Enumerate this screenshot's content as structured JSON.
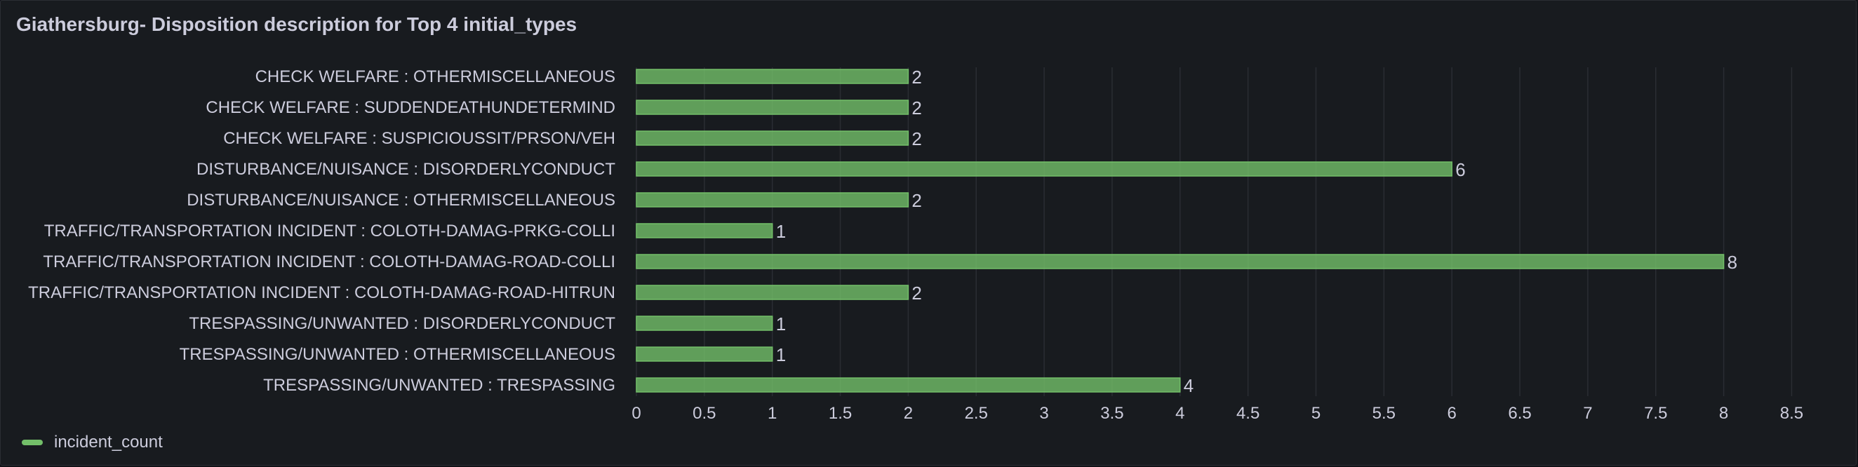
{
  "panel": {
    "title": "Giathersburg- Disposition description for Top 4 initial_types"
  },
  "legend": {
    "label": "incident_count",
    "color": "#73bf69"
  },
  "chart_data": {
    "type": "bar",
    "orientation": "horizontal",
    "title": "Giathersburg- Disposition description for Top 4 initial_types",
    "categories": [
      "CHECK WELFARE : OTHERMISCELLANEOUS",
      "CHECK WELFARE : SUDDENDEATHUNDETERMIND",
      "CHECK WELFARE : SUSPICIOUSSIT/PRSON/VEH",
      "DISTURBANCE/NUISANCE : DISORDERLYCONDUCT",
      "DISTURBANCE/NUISANCE : OTHERMISCELLANEOUS",
      "TRAFFIC/TRANSPORTATION INCIDENT : COLOTH-DAMAG-PRKG-COLLI",
      "TRAFFIC/TRANSPORTATION INCIDENT : COLOTH-DAMAG-ROAD-COLLI",
      "TRAFFIC/TRANSPORTATION INCIDENT : COLOTH-DAMAG-ROAD-HITRUN",
      "TRESPASSING/UNWANTED : DISORDERLYCONDUCT",
      "TRESPASSING/UNWANTED : OTHERMISCELLANEOUS",
      "TRESPASSING/UNWANTED : TRESPASSING"
    ],
    "series": [
      {
        "name": "incident_count",
        "values": [
          2,
          2,
          2,
          6,
          2,
          1,
          8,
          2,
          1,
          1,
          4
        ]
      }
    ],
    "xlim": [
      0,
      8.5
    ],
    "xticks": [
      "0",
      "0.5",
      "1",
      "1.5",
      "2",
      "2.5",
      "3",
      "3.5",
      "4",
      "4.5",
      "5",
      "5.5",
      "6",
      "6.5",
      "7",
      "7.5",
      "8",
      "8.5"
    ],
    "grid": true,
    "legend_position": "bottom-left",
    "bar_color": "#73bf69"
  }
}
